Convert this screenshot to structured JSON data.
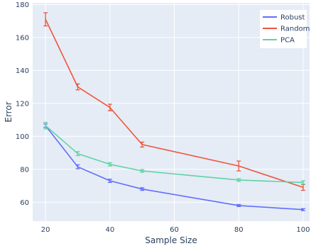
{
  "chart_data": {
    "type": "line",
    "xlabel": "Sample Size",
    "ylabel": "Error",
    "x": [
      20,
      30,
      40,
      50,
      80,
      100
    ],
    "xlim": [
      16,
      102
    ],
    "ylim": [
      48.5,
      181
    ],
    "xticks": [
      20,
      40,
      60,
      80,
      100
    ],
    "yticks": [
      60,
      80,
      100,
      120,
      140,
      160,
      180
    ],
    "grid": true,
    "legend_position": "top-right",
    "series": [
      {
        "name": "Robust",
        "color": "#636efa",
        "values": [
          106.5,
          81.5,
          73.0,
          68.0,
          58.0,
          55.5
        ],
        "errors": [
          1.0,
          1.2,
          1.0,
          0.8,
          0.6,
          0.6
        ]
      },
      {
        "name": "Random",
        "color": "#ef553b",
        "values": [
          171.0,
          130.0,
          117.5,
          95.0,
          82.0,
          69.0
        ],
        "errors": [
          4.0,
          1.8,
          2.0,
          1.5,
          3.0,
          1.8
        ]
      },
      {
        "name": "PCA",
        "color": "#5fd3a4",
        "values": [
          106.5,
          89.5,
          83.0,
          79.0,
          73.5,
          72.0
        ],
        "errors": [
          2.0,
          1.2,
          1.0,
          0.8,
          0.8,
          1.0
        ]
      }
    ]
  }
}
